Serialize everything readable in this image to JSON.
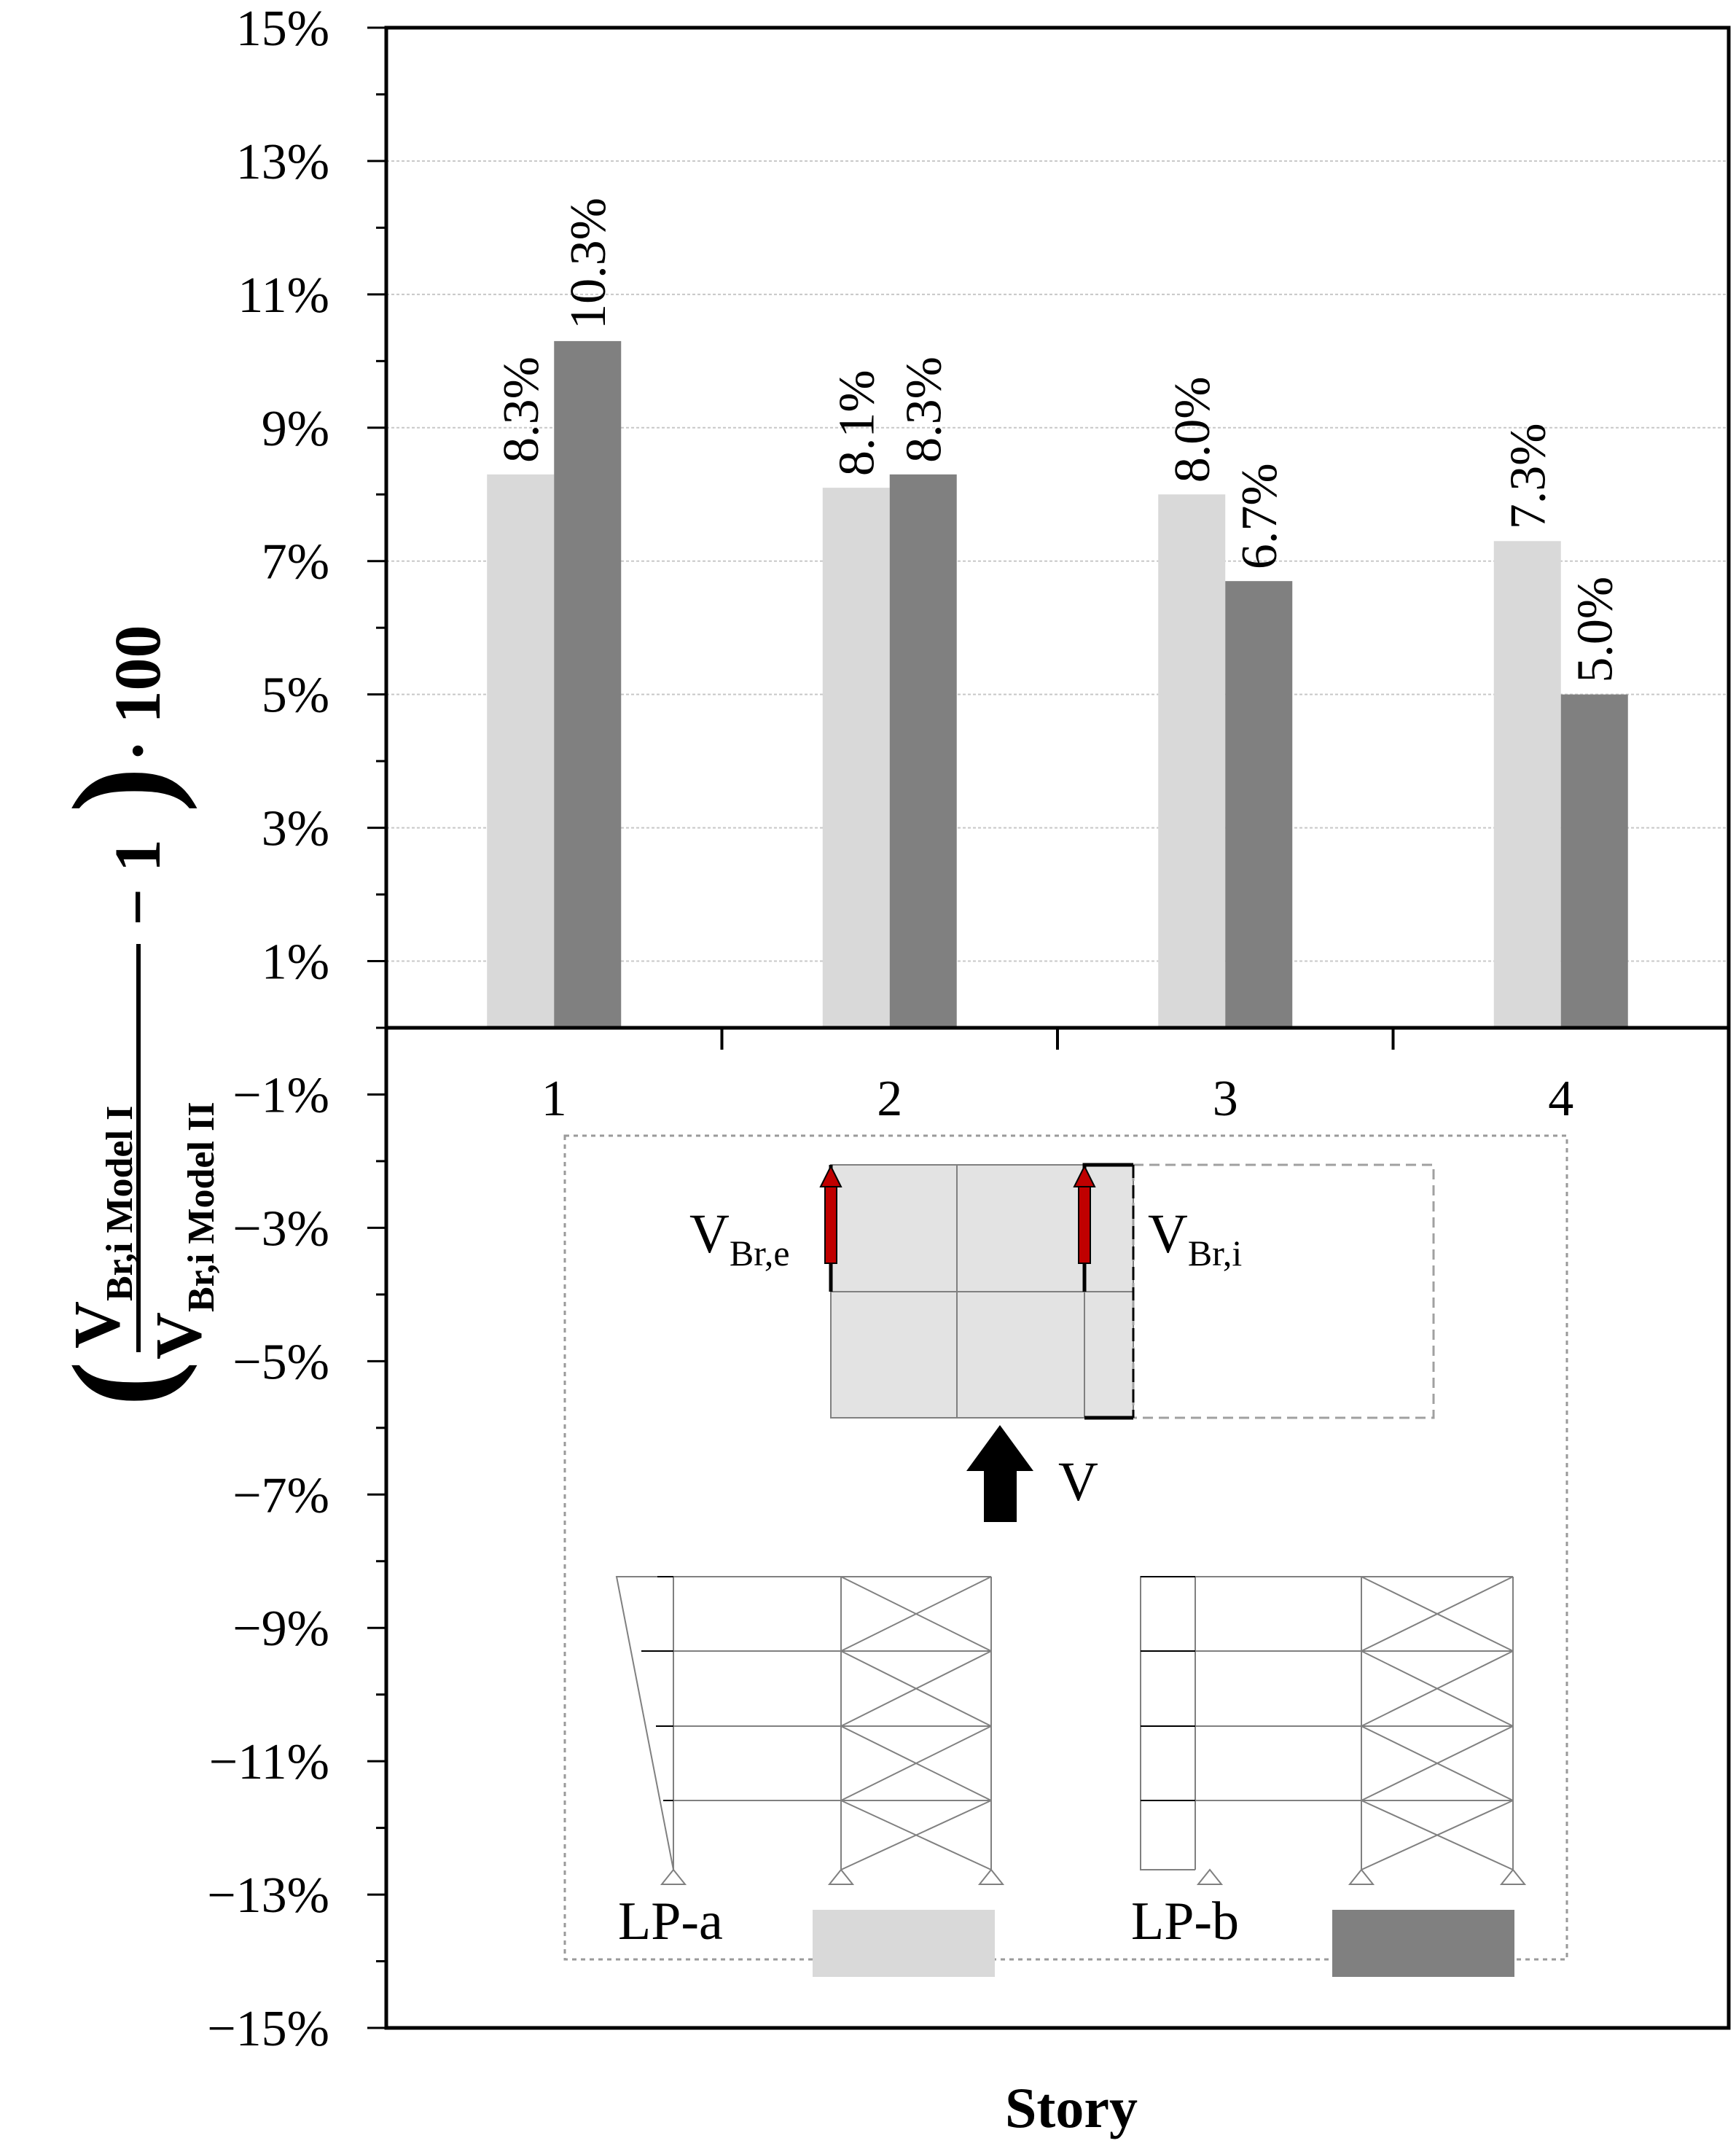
{
  "chart_data": {
    "type": "bar",
    "title": "",
    "xlabel": "Story",
    "ylabel": {
      "numerator": "V",
      "numerator_sub": "Br,i Model I",
      "denominator": "V",
      "denominator_sub": "Br,i Model II",
      "minus_one": "− 1",
      "times_100": "· 100",
      "open_paren": "(",
      "close_paren": ")"
    },
    "categories": [
      "1",
      "2",
      "3",
      "4"
    ],
    "series": [
      {
        "name": "LP-a",
        "color": "#d9d9d9",
        "values": [
          8.3,
          8.1,
          8.0,
          7.3
        ],
        "labels": [
          "8.3%",
          "8.1%",
          "8.0%",
          "7.3%"
        ]
      },
      {
        "name": "LP-b",
        "color": "#808080",
        "values": [
          10.3,
          8.3,
          6.7,
          5.0
        ],
        "labels": [
          "10.3%",
          "8.3%",
          "6.7%",
          "5.0%"
        ]
      }
    ],
    "ylim": [
      -15,
      15
    ],
    "yticks": [
      15,
      13,
      11,
      9,
      7,
      5,
      3,
      1,
      -1,
      -3,
      -5,
      -7,
      -9,
      -11,
      -13,
      -15
    ],
    "ytick_labels": [
      "15%",
      "13%",
      "11%",
      "9%",
      "7%",
      "5%",
      "3%",
      "1%",
      "−1%",
      "−3%",
      "−5%",
      "−7%",
      "−9%",
      "−11%",
      "−13%",
      "−15%"
    ],
    "grid": true,
    "legend_position": "inset-bottom",
    "inset": {
      "v_br_e_main": "V",
      "v_br_e_sub": "Br,e",
      "v_br_i_main": "V",
      "v_br_i_sub": "Br,i",
      "v_label": "V",
      "arrow_color": "#c00000"
    }
  }
}
